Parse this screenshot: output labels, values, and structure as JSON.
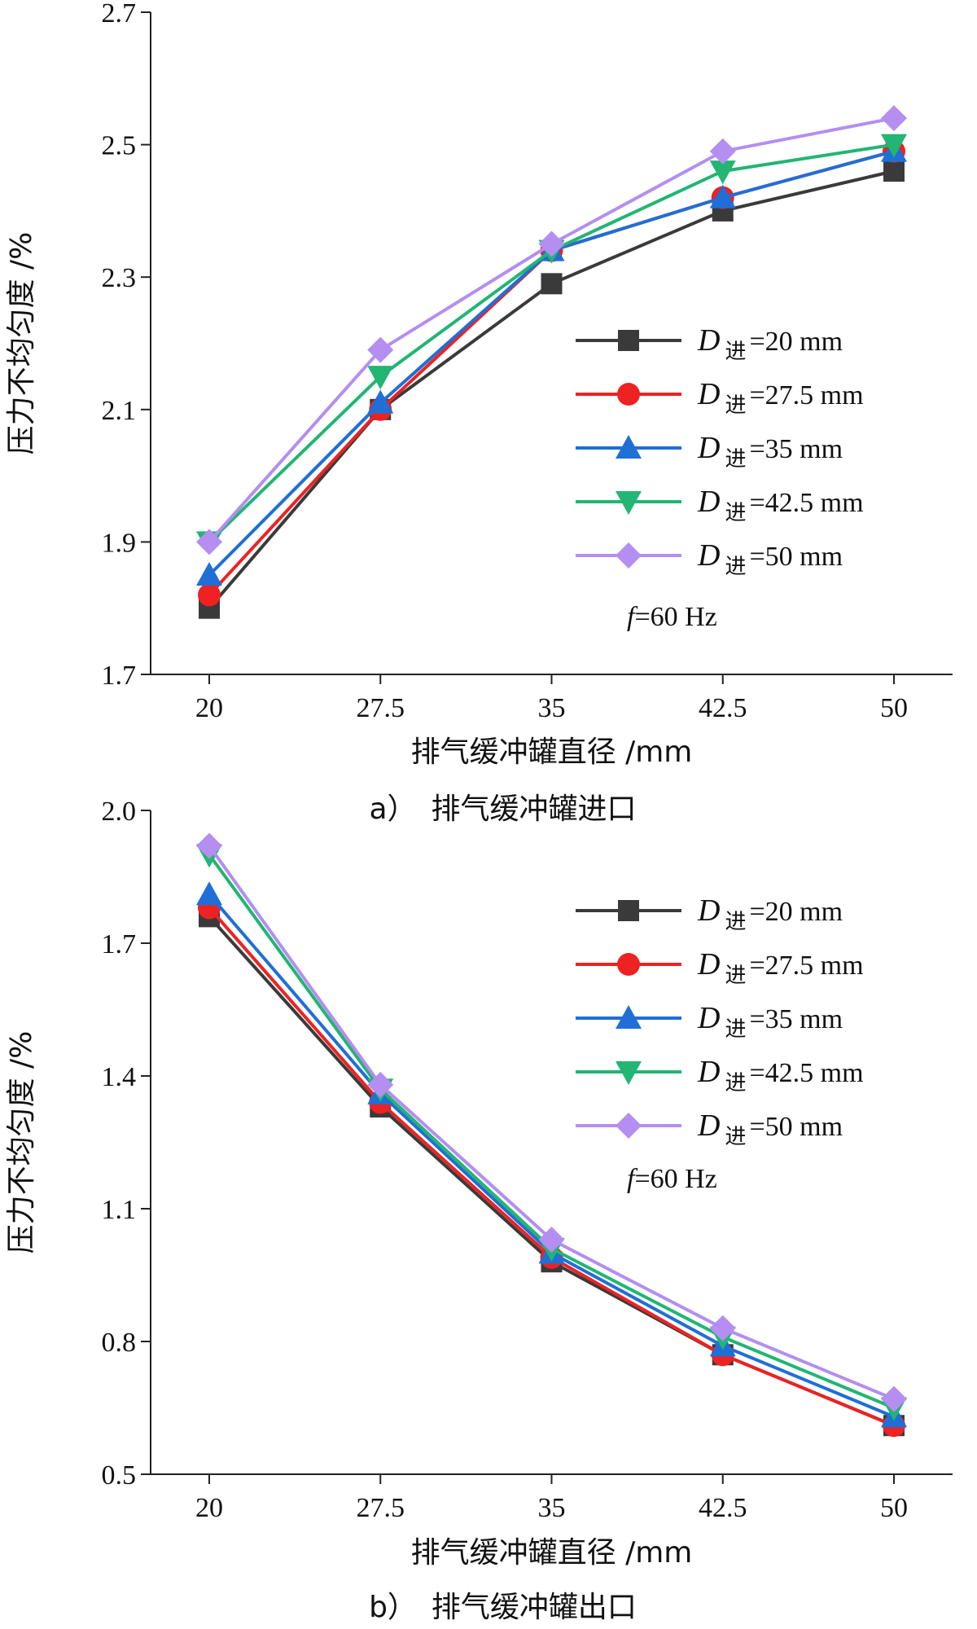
{
  "chart_data": [
    {
      "type": "line",
      "caption": "a）　排气缓冲罐进口",
      "xlabel": "排气缓冲罐直径 /mm",
      "ylabel": "压力不均匀度 /%",
      "categories": [
        "20",
        "27.5",
        "35",
        "42.5",
        "50"
      ],
      "ylim": [
        1.7,
        2.7
      ],
      "yticks": [
        "1.7",
        "1.9",
        "2.1",
        "2.3",
        "2.5",
        "2.7"
      ],
      "note_italic": "f",
      "note_rest": "=60 Hz",
      "series": [
        {
          "name": "D",
          "sub": "进",
          "value_label": "=20 mm",
          "color": "#3a3a3a",
          "marker": "square",
          "values": [
            1.8,
            2.1,
            2.29,
            2.4,
            2.46
          ]
        },
        {
          "name": "D",
          "sub": "进",
          "value_label": "=27.5 mm",
          "color": "#ee2222",
          "marker": "circle",
          "values": [
            1.82,
            2.1,
            2.34,
            2.42,
            2.49
          ]
        },
        {
          "name": "D",
          "sub": "进",
          "value_label": "=35 mm",
          "color": "#1f6fd6",
          "marker": "triangle",
          "values": [
            1.85,
            2.11,
            2.34,
            2.42,
            2.49
          ]
        },
        {
          "name": "D",
          "sub": "进",
          "value_label": "=42.5 mm",
          "color": "#22b573",
          "marker": "tri-down",
          "values": [
            1.9,
            2.15,
            2.34,
            2.46,
            2.5
          ]
        },
        {
          "name": "D",
          "sub": "进",
          "value_label": "=50 mm",
          "color": "#b48ef0",
          "marker": "diamond",
          "values": [
            1.9,
            2.19,
            2.35,
            2.49,
            2.54
          ]
        }
      ]
    },
    {
      "type": "line",
      "caption": "b）　排气缓冲罐出口",
      "xlabel": "排气缓冲罐直径 /mm",
      "ylabel": "压力不均匀度 /%",
      "categories": [
        "20",
        "27.5",
        "35",
        "42.5",
        "50"
      ],
      "ylim": [
        0.5,
        2.0
      ],
      "yticks": [
        "0.5",
        "0.8",
        "1.1",
        "1.4",
        "1.7",
        "2.0"
      ],
      "note_italic": "f",
      "note_rest": "=60 Hz",
      "series": [
        {
          "name": "D",
          "sub": "进",
          "value_label": "=20 mm",
          "color": "#3a3a3a",
          "marker": "square",
          "values": [
            1.76,
            1.33,
            0.98,
            0.77,
            0.61
          ]
        },
        {
          "name": "D",
          "sub": "进",
          "value_label": "=27.5 mm",
          "color": "#ee2222",
          "marker": "circle",
          "values": [
            1.78,
            1.34,
            0.99,
            0.77,
            0.61
          ]
        },
        {
          "name": "D",
          "sub": "进",
          "value_label": "=35 mm",
          "color": "#1f6fd6",
          "marker": "triangle",
          "values": [
            1.81,
            1.36,
            1.0,
            0.79,
            0.63
          ]
        },
        {
          "name": "D",
          "sub": "进",
          "value_label": "=42.5 mm",
          "color": "#22b573",
          "marker": "tri-down",
          "values": [
            1.9,
            1.37,
            1.01,
            0.81,
            0.65
          ]
        },
        {
          "name": "D",
          "sub": "进",
          "value_label": "=50 mm",
          "color": "#b48ef0",
          "marker": "diamond",
          "values": [
            1.92,
            1.38,
            1.03,
            0.83,
            0.67
          ]
        }
      ]
    }
  ]
}
